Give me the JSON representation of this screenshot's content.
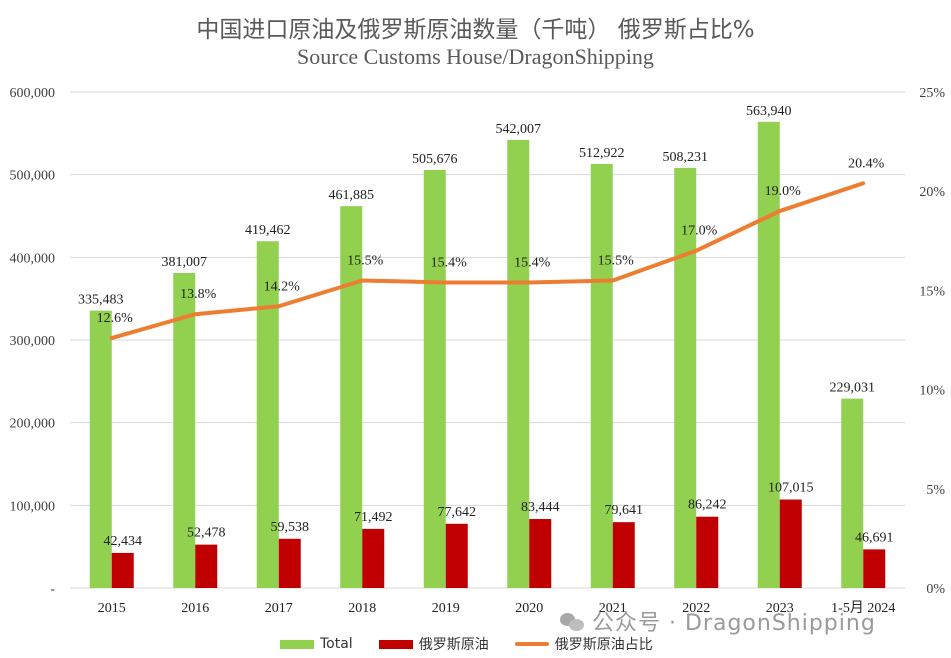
{
  "title": "中国进口原油及俄罗斯原油数量（千吨） 俄罗斯占比%",
  "subtitle": "Source Customs House/DragonShipping",
  "watermark": "公众号 · DragonShipping",
  "colors": {
    "total": "#92d050",
    "russia": "#c00000",
    "share": "#ed7d31",
    "grid": "#d9d9d9"
  },
  "chart_data": {
    "type": "bar",
    "categories": [
      "2015",
      "2016",
      "2017",
      "2018",
      "2019",
      "2020",
      "2021",
      "2022",
      "2023",
      "1-5月 2024"
    ],
    "series": [
      {
        "name": "Total",
        "kind": "bar",
        "axis": "left",
        "values": [
          335483,
          381007,
          419462,
          461885,
          505676,
          542007,
          512922,
          508231,
          563940,
          229031
        ],
        "labels": [
          "335,483",
          "381,007",
          "419,462",
          "461,885",
          "505,676",
          "542,007",
          "512,922",
          "508,231",
          "563,940",
          "229,031"
        ]
      },
      {
        "name": "俄罗斯原油",
        "kind": "bar",
        "axis": "left",
        "values": [
          42434,
          52478,
          59538,
          71492,
          77642,
          83444,
          79641,
          86242,
          107015,
          46691
        ],
        "labels": [
          "42,434",
          "52,478",
          "59,538",
          "71,492",
          "77,642",
          "83,444",
          "79,641",
          "86,242",
          "107,015",
          "46,691"
        ]
      },
      {
        "name": "俄罗斯原油占比",
        "kind": "line",
        "axis": "right",
        "values": [
          12.6,
          13.8,
          14.2,
          15.5,
          15.4,
          15.4,
          15.5,
          17.0,
          19.0,
          20.4
        ],
        "labels": [
          "12.6%",
          "13.8%",
          "14.2%",
          "15.5%",
          "15.4%",
          "15.4%",
          "15.5%",
          "17.0%",
          "19.0%",
          "20.4%"
        ]
      }
    ],
    "y_left": {
      "range": [
        0,
        600000
      ],
      "ticks": [
        "-",
        "100,000",
        "200,000",
        "300,000",
        "400,000",
        "500,000",
        "600,000"
      ]
    },
    "y_right": {
      "range": [
        0,
        25
      ],
      "ticks": [
        "0%",
        "5%",
        "10%",
        "15%",
        "20%",
        "25%"
      ]
    },
    "grid": true,
    "legend_position": "bottom"
  }
}
